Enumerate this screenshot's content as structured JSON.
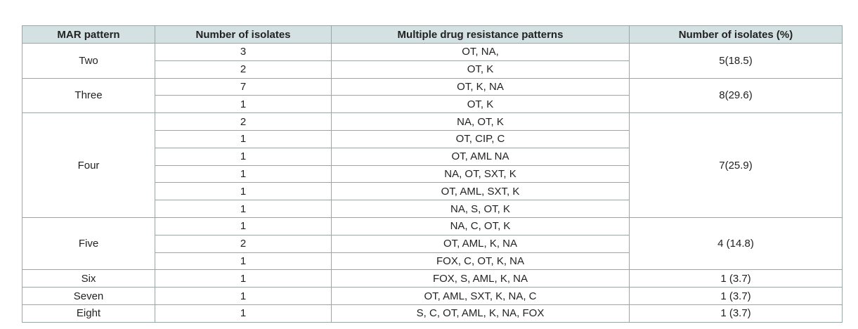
{
  "table": {
    "headers": [
      "MAR pattern",
      "Number of isolates",
      "Multiple drug resistance patterns",
      "Number of isolates (%)"
    ],
    "groups": [
      {
        "pattern": "Two",
        "percent": "5(18.5)",
        "rows": [
          {
            "isolates": "3",
            "drugs": "OT, NA,"
          },
          {
            "isolates": "2",
            "drugs": "OT, K"
          }
        ]
      },
      {
        "pattern": "Three",
        "percent": "8(29.6)",
        "rows": [
          {
            "isolates": "7",
            "drugs": "OT, K, NA"
          },
          {
            "isolates": "1",
            "drugs": "OT, K"
          }
        ]
      },
      {
        "pattern": "Four",
        "percent": "7(25.9)",
        "rows": [
          {
            "isolates": "2",
            "drugs": "NA, OT, K"
          },
          {
            "isolates": "1",
            "drugs": "OT, CIP, C"
          },
          {
            "isolates": "1",
            "drugs": "OT, AML NA"
          },
          {
            "isolates": "1",
            "drugs": "NA, OT, SXT, K"
          },
          {
            "isolates": "1",
            "drugs": "OT, AML, SXT, K"
          },
          {
            "isolates": "1",
            "drugs": "NA, S, OT, K"
          }
        ]
      },
      {
        "pattern": "Five",
        "percent": "4 (14.8)",
        "rows": [
          {
            "isolates": "1",
            "drugs": "NA, C, OT, K"
          },
          {
            "isolates": "2",
            "drugs": "OT, AML, K, NA"
          },
          {
            "isolates": "1",
            "drugs": "FOX, C, OT, K, NA"
          }
        ]
      },
      {
        "pattern": "Six",
        "percent": "1 (3.7)",
        "rows": [
          {
            "isolates": "1",
            "drugs": "FOX, S, AML, K, NA"
          }
        ]
      },
      {
        "pattern": "Seven",
        "percent": "1 (3.7)",
        "rows": [
          {
            "isolates": "1",
            "drugs": "OT, AML, SXT, K, NA, C"
          }
        ]
      },
      {
        "pattern": "Eight",
        "percent": "1 (3.7)",
        "rows": [
          {
            "isolates": "1",
            "drugs": "S, C, OT, AML, K, NA, FOX"
          }
        ]
      }
    ]
  }
}
